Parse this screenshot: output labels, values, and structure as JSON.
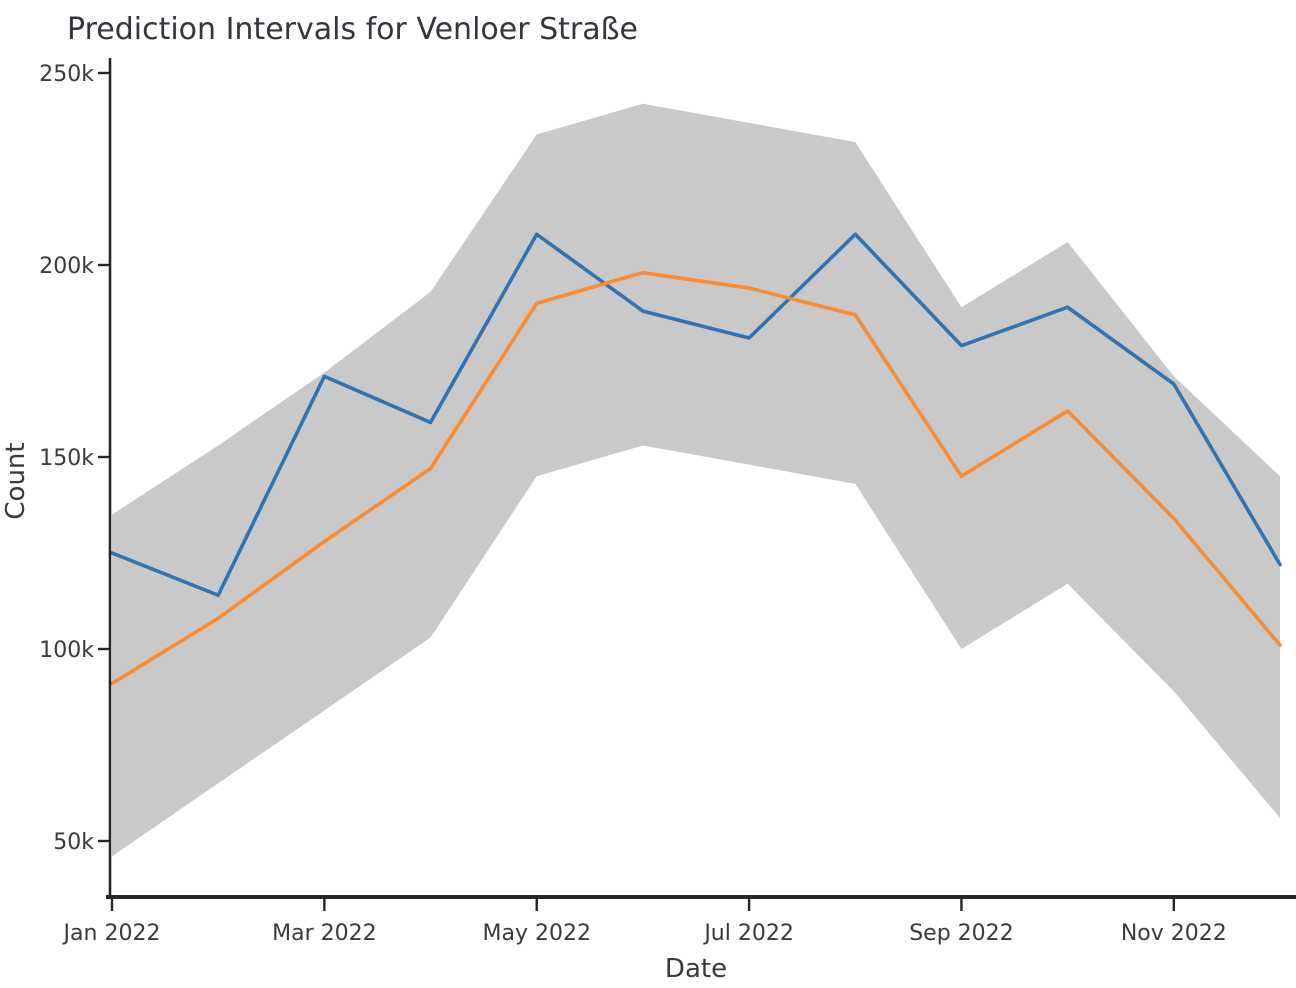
{
  "chart_data": {
    "type": "line",
    "title": "Prediction Intervals for Venloer Straße",
    "xlabel": "Date",
    "ylabel": "Count",
    "categories": [
      "Jan 2022",
      "Feb 2022",
      "Mar 2022",
      "Apr 2022",
      "May 2022",
      "Jun 2022",
      "Jul 2022",
      "Aug 2022",
      "Sep 2022",
      "Oct 2022",
      "Nov 2022",
      "Dec 2022"
    ],
    "series": [
      {
        "name": "blue-line",
        "color": "#2e74b5",
        "values": [
          125000,
          114000,
          171000,
          159000,
          208000,
          188000,
          181000,
          208000,
          179000,
          189000,
          169000,
          122000
        ]
      },
      {
        "name": "orange-line",
        "color": "#f98b30",
        "values": [
          91000,
          108000,
          128000,
          147000,
          190000,
          198000,
          194000,
          187000,
          145000,
          162000,
          134000,
          101000
        ]
      }
    ],
    "band": {
      "name": "prediction-interval-band",
      "color": "#c9c9c9",
      "upper": [
        135000,
        153000,
        172000,
        193000,
        234000,
        242000,
        237000,
        232000,
        189000,
        206000,
        171000,
        145000
      ],
      "lower": [
        46000,
        65000,
        84000,
        103000,
        145000,
        153000,
        148000,
        143000,
        100000,
        117000,
        89000,
        56000
      ]
    },
    "x_ticks": [
      {
        "index": 0,
        "label": "Jan 2022"
      },
      {
        "index": 2,
        "label": "Mar 2022"
      },
      {
        "index": 4,
        "label": "May 2022"
      },
      {
        "index": 6,
        "label": "Jul 2022"
      },
      {
        "index": 8,
        "label": "Sep 2022"
      },
      {
        "index": 10,
        "label": "Nov 2022"
      }
    ],
    "y_ticks": [
      {
        "value": 50000,
        "label": "50k"
      },
      {
        "value": 100000,
        "label": "100k"
      },
      {
        "value": 150000,
        "label": "150k"
      },
      {
        "value": 200000,
        "label": "200k"
      },
      {
        "value": 250000,
        "label": "250k"
      }
    ],
    "ylim": [
      35000,
      254000
    ],
    "grid": false,
    "legend": "none",
    "colors": {
      "axis": "#262626",
      "tick_text": "#3a3a3a",
      "title_text": "#36353d"
    }
  }
}
